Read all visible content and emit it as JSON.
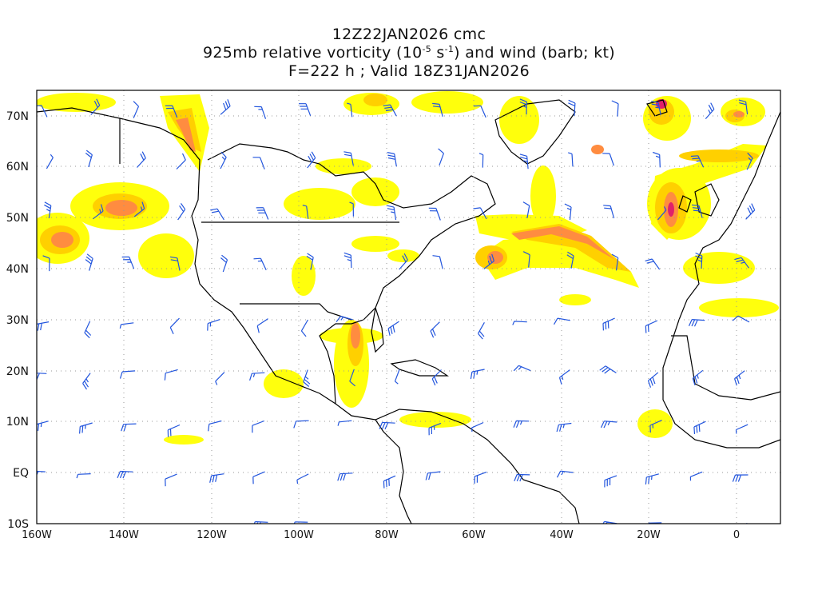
{
  "title": {
    "line1": "12Z22JAN2026 cmc",
    "line2_pre": "925mb relative vorticity (10",
    "line2_exp1": "-5",
    "line2_mid": " s",
    "line2_exp2": "-1",
    "line2_post": ") and wind (barb; kt)",
    "line3": "F=222 h ; Valid 18Z31JAN2026"
  },
  "map": {
    "lon_range": [
      -160,
      10
    ],
    "lat_range": [
      -10,
      75
    ],
    "x_tick_labels": [
      "160W",
      "140W",
      "120W",
      "100W",
      "80W",
      "60W",
      "40W",
      "20W",
      "0"
    ],
    "y_tick_labels": [
      "10S",
      "EQ",
      "10N",
      "20N",
      "30N",
      "40N",
      "50N",
      "60N",
      "70N"
    ],
    "grid": "dotted",
    "colors": {
      "vorticity_low": "#ffff00",
      "vorticity_mid": "#ffd000",
      "vorticity_high": "#ff8c40",
      "vorticity_max": "#e0206a",
      "wind_barb": "#2255dd",
      "coastline": "#000000"
    }
  }
}
